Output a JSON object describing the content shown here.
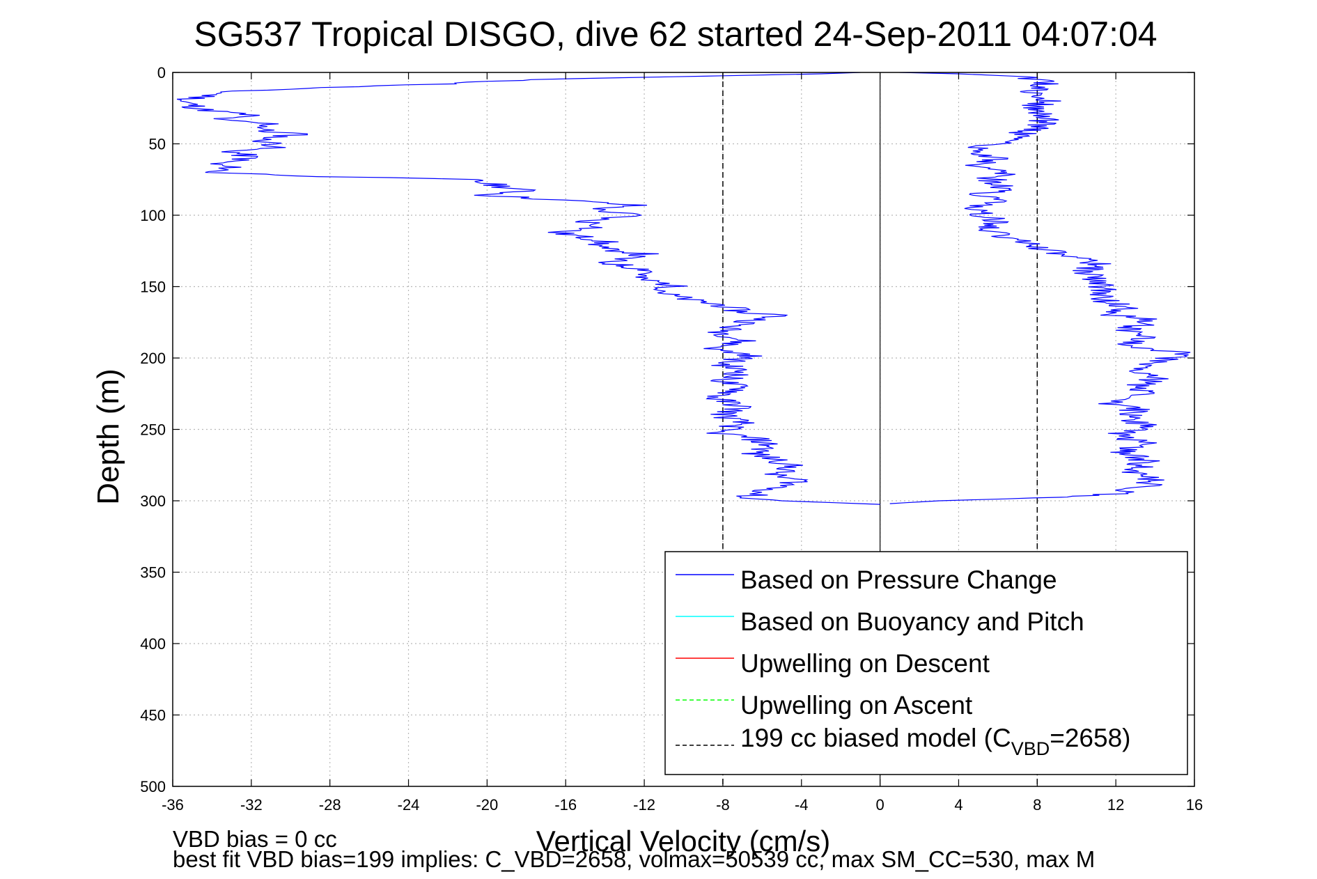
{
  "chart_data": {
    "type": "line",
    "title": "SG537 Tropical DISGO, dive 62 started 24-Sep-2011 04:07:04",
    "xlabel": "Vertical Velocity (cm/s)",
    "ylabel": "Depth (m)",
    "xlim": [
      -36,
      16
    ],
    "ylim": [
      0,
      500
    ],
    "y_reversed": true,
    "grid": true,
    "legend_position": "bottom-right",
    "x_ticks": [
      "-36",
      "-32",
      "-28",
      "-24",
      "-20",
      "-16",
      "-12",
      "-8",
      "-4",
      "0",
      "4",
      "8",
      "12",
      "16"
    ],
    "y_ticks": [
      "0",
      "50",
      "100",
      "150",
      "200",
      "250",
      "300",
      "350",
      "400",
      "450",
      "500"
    ],
    "legend": [
      {
        "label": "Based on Pressure Change",
        "color": "#0000ff",
        "style": "solid"
      },
      {
        "label": "Based on Buoyancy and Pitch",
        "color": "#00ffff",
        "style": "solid"
      },
      {
        "label": "Upwelling on Descent",
        "color": "#ff0000",
        "style": "solid"
      },
      {
        "label": "Upwelling on Ascent",
        "color": "#00ff00",
        "style": "dashed"
      },
      {
        "label_main": "199 cc biased model (C",
        "label_sub": "VBD",
        "label_tail": "=2658)",
        "color": "#000000",
        "style": "dashed"
      }
    ],
    "series": [
      {
        "name": "Based on Pressure Change",
        "color": "#0000ff",
        "descent": [
          [
            -1.0,
            0
          ],
          [
            -3.0,
            1
          ],
          [
            -18.0,
            5
          ],
          [
            -22.0,
            8
          ],
          [
            -27.0,
            10
          ],
          [
            -33.0,
            13
          ],
          [
            -35.5,
            20
          ],
          [
            -34.5,
            26
          ],
          [
            -32.0,
            30
          ],
          [
            -34.0,
            33
          ],
          [
            -31.0,
            36
          ],
          [
            -31.5,
            41
          ],
          [
            -29.5,
            43
          ],
          [
            -31.5,
            47
          ],
          [
            -30.5,
            52
          ],
          [
            -33.0,
            55
          ],
          [
            -32.0,
            60
          ],
          [
            -34.0,
            64
          ],
          [
            -33.0,
            67
          ],
          [
            -34.0,
            70
          ],
          [
            -28.0,
            73
          ],
          [
            -21.0,
            75
          ],
          [
            -19.5,
            79
          ],
          [
            -18.0,
            83
          ],
          [
            -20.0,
            86
          ],
          [
            -15.5,
            90
          ],
          [
            -12.5,
            93
          ],
          [
            -14.5,
            96
          ],
          [
            -12.5,
            100
          ],
          [
            -15.0,
            104
          ],
          [
            -14.0,
            108
          ],
          [
            -16.5,
            112
          ],
          [
            -14.0,
            118
          ],
          [
            -14.5,
            123
          ],
          [
            -12.0,
            127
          ],
          [
            -14.0,
            133
          ],
          [
            -11.5,
            139
          ],
          [
            -12.5,
            144
          ],
          [
            -10.5,
            149
          ],
          [
            -11.0,
            155
          ],
          [
            -9.5,
            160
          ],
          [
            -8.0,
            163
          ],
          [
            -7.0,
            168
          ],
          [
            -5.0,
            170
          ],
          [
            -6.5,
            174
          ],
          [
            -7.5,
            178
          ],
          [
            -8.0,
            182
          ],
          [
            -7.0,
            188
          ],
          [
            -8.5,
            194
          ],
          [
            -6.5,
            198
          ],
          [
            -8.0,
            204
          ],
          [
            -7.0,
            210
          ],
          [
            -8.0,
            216
          ],
          [
            -7.0,
            222
          ],
          [
            -8.5,
            228
          ],
          [
            -7.0,
            234
          ],
          [
            -8.0,
            240
          ],
          [
            -7.0,
            246
          ],
          [
            -8.5,
            252
          ],
          [
            -6.5,
            256
          ],
          [
            -5.5,
            262
          ],
          [
            -6.5,
            267
          ],
          [
            -5.0,
            272
          ],
          [
            -4.5,
            277
          ],
          [
            -5.5,
            282
          ],
          [
            -4.0,
            286
          ],
          [
            -5.0,
            290
          ],
          [
            -6.0,
            294
          ],
          [
            -7.0,
            298
          ],
          [
            -5.0,
            300
          ],
          [
            -1.0,
            302
          ],
          [
            0.0,
            302.5
          ]
        ],
        "ascent": [
          [
            0.5,
            302
          ],
          [
            3.0,
            300
          ],
          [
            8.0,
            298
          ],
          [
            12.0,
            295
          ],
          [
            13.5,
            290
          ],
          [
            14.0,
            286
          ],
          [
            13.0,
            280
          ],
          [
            13.5,
            272
          ],
          [
            12.5,
            266
          ],
          [
            13.5,
            260
          ],
          [
            12.0,
            254
          ],
          [
            13.5,
            248
          ],
          [
            12.5,
            242
          ],
          [
            13.0,
            236
          ],
          [
            11.5,
            232
          ],
          [
            13.5,
            226
          ],
          [
            13.0,
            220
          ],
          [
            14.0,
            214
          ],
          [
            13.0,
            208
          ],
          [
            14.5,
            202
          ],
          [
            15.5,
            196
          ],
          [
            12.0,
            192
          ],
          [
            13.5,
            186
          ],
          [
            12.5,
            180
          ],
          [
            14.0,
            174
          ],
          [
            12.0,
            170
          ],
          [
            12.5,
            164
          ],
          [
            11.0,
            158
          ],
          [
            11.5,
            152
          ],
          [
            11.0,
            146
          ],
          [
            10.5,
            140
          ],
          [
            11.0,
            134
          ],
          [
            9.5,
            128
          ],
          [
            8.5,
            124
          ],
          [
            7.5,
            120
          ],
          [
            6.5,
            116
          ],
          [
            5.5,
            110
          ],
          [
            6.0,
            104
          ],
          [
            5.0,
            98
          ],
          [
            4.5,
            94
          ],
          [
            6.0,
            90
          ],
          [
            5.0,
            86
          ],
          [
            6.5,
            80
          ],
          [
            5.5,
            74
          ],
          [
            6.5,
            70
          ],
          [
            5.0,
            65
          ],
          [
            6.0,
            60
          ],
          [
            4.5,
            55
          ],
          [
            6.0,
            50
          ],
          [
            7.0,
            44
          ],
          [
            8.0,
            38
          ],
          [
            8.5,
            32
          ],
          [
            7.5,
            26
          ],
          [
            8.5,
            20
          ],
          [
            7.5,
            14
          ],
          [
            8.5,
            8
          ],
          [
            7.5,
            3
          ],
          [
            4.0,
            1
          ],
          [
            1.0,
            0
          ]
        ]
      },
      {
        "name": "199 cc biased model (C_VBD=2658)",
        "color": "#000000",
        "lines": [
          [
            [
              -8,
              0
            ],
            [
              -8,
              500
            ]
          ],
          [
            [
              8,
              0
            ],
            [
              8,
              500
            ]
          ]
        ]
      }
    ],
    "annotations": {
      "vbd_bias": "VBD bias = 0 cc",
      "best_fit": "best fit VBD bias=199 implies: C_VBD=2658, volmax=50539 cc, max SM_CC=530, max M"
    }
  }
}
